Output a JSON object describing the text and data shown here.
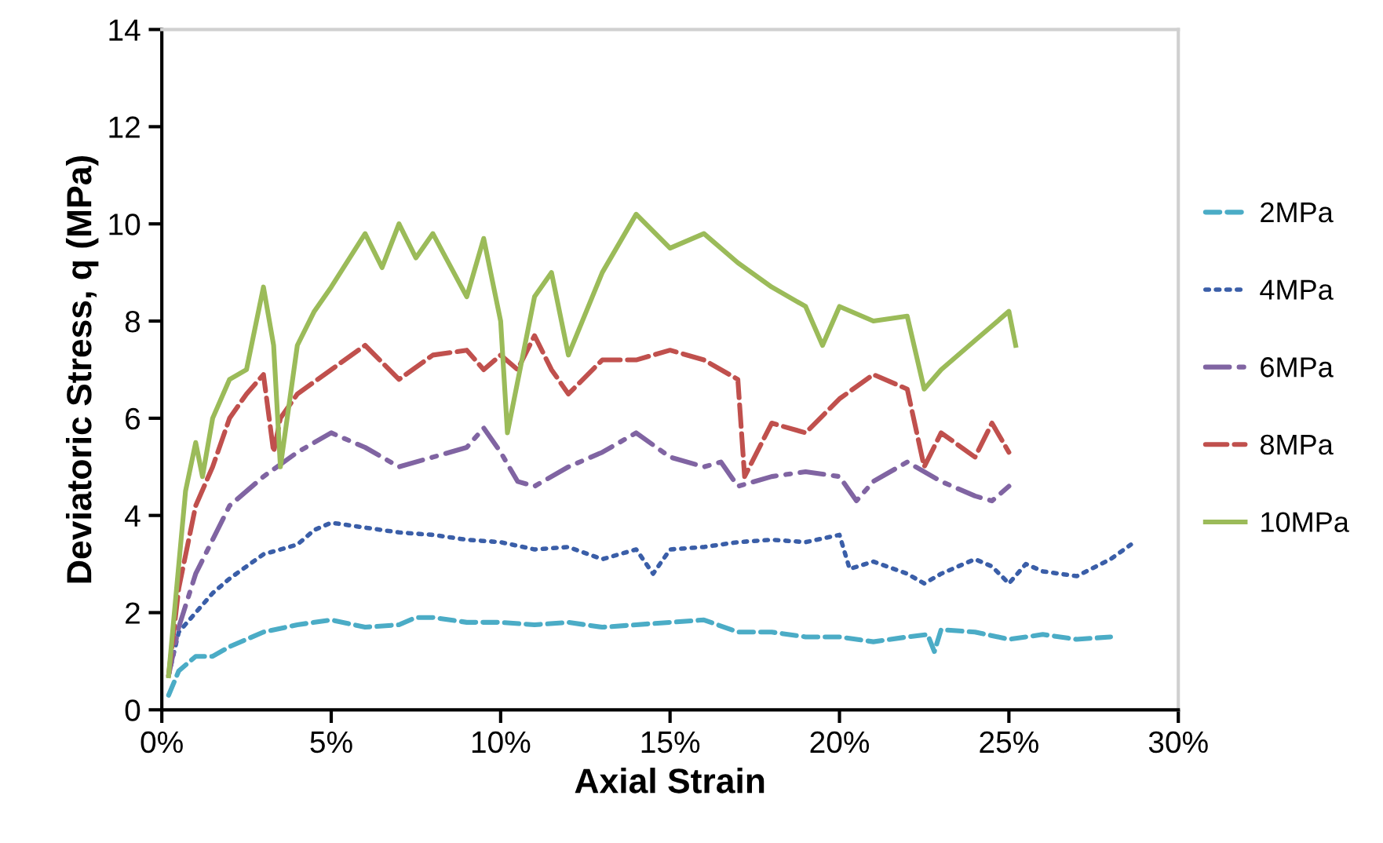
{
  "chart_data": {
    "type": "line",
    "xlabel": "Axial Strain",
    "ylabel": "Deviatoric Stress, q (MPa)",
    "xlim": [
      0,
      30
    ],
    "ylim": [
      0,
      14
    ],
    "xticks": [
      {
        "value": 0,
        "label": "0%"
      },
      {
        "value": 5,
        "label": "5%"
      },
      {
        "value": 10,
        "label": "10%"
      },
      {
        "value": 15,
        "label": "15%"
      },
      {
        "value": 20,
        "label": "20%"
      },
      {
        "value": 25,
        "label": "25%"
      },
      {
        "value": 30,
        "label": "30%"
      }
    ],
    "yticks": [
      0,
      2,
      4,
      6,
      8,
      10,
      12,
      14
    ],
    "grid": false,
    "legend": "right",
    "marker": "none",
    "series": [
      {
        "name": "2MPa",
        "color": "#4bacc6",
        "line_style": "dashed",
        "x": [
          0.2,
          0.5,
          1,
          1.5,
          2,
          3,
          4,
          5,
          6,
          7,
          7.5,
          8,
          9,
          10,
          11,
          12,
          13,
          14,
          15,
          16,
          17,
          18,
          19,
          20,
          21,
          22,
          22.6,
          22.8,
          23,
          24,
          25,
          26,
          27,
          28
        ],
        "values": [
          0.3,
          0.8,
          1.1,
          1.1,
          1.3,
          1.6,
          1.75,
          1.85,
          1.7,
          1.75,
          1.9,
          1.9,
          1.8,
          1.8,
          1.75,
          1.8,
          1.7,
          1.75,
          1.8,
          1.85,
          1.6,
          1.6,
          1.5,
          1.5,
          1.4,
          1.5,
          1.55,
          1.2,
          1.65,
          1.6,
          1.45,
          1.55,
          1.45,
          1.5
        ]
      },
      {
        "name": "4MPa",
        "color": "#3a5ea8",
        "line_style": "dotted",
        "x": [
          0.2,
          0.5,
          1,
          1.5,
          2,
          3,
          4,
          4.5,
          5,
          6,
          7,
          8,
          9,
          10,
          11,
          12,
          13,
          14,
          14.5,
          15,
          16,
          17,
          18,
          19,
          20,
          20.3,
          21,
          22,
          22.5,
          23,
          24,
          24.5,
          25,
          25.5,
          26,
          27,
          28,
          28.6
        ],
        "values": [
          0.7,
          1.6,
          2.0,
          2.4,
          2.7,
          3.2,
          3.4,
          3.7,
          3.85,
          3.75,
          3.65,
          3.6,
          3.5,
          3.45,
          3.3,
          3.35,
          3.1,
          3.3,
          2.8,
          3.3,
          3.35,
          3.45,
          3.5,
          3.45,
          3.6,
          2.9,
          3.05,
          2.8,
          2.6,
          2.8,
          3.1,
          2.95,
          2.6,
          3.0,
          2.85,
          2.75,
          3.1,
          3.4
        ]
      },
      {
        "name": "6MPa",
        "color": "#8064a2",
        "line_style": "dashdot",
        "x": [
          0.2,
          0.5,
          1,
          1.5,
          2,
          3,
          4,
          5,
          6,
          7,
          8,
          9,
          9.5,
          10,
          10.5,
          11,
          12,
          13,
          14,
          15,
          16,
          16.5,
          17,
          18,
          19,
          20,
          20.5,
          21,
          22,
          23,
          24,
          24.5,
          25
        ],
        "values": [
          0.7,
          1.7,
          2.8,
          3.5,
          4.2,
          4.8,
          5.3,
          5.7,
          5.4,
          5.0,
          5.2,
          5.4,
          5.8,
          5.3,
          4.7,
          4.6,
          5.0,
          5.3,
          5.7,
          5.2,
          5.0,
          5.1,
          4.6,
          4.8,
          4.9,
          4.8,
          4.3,
          4.7,
          5.1,
          4.7,
          4.4,
          4.3,
          4.6
        ]
      },
      {
        "name": "8MPa",
        "color": "#c0504d",
        "line_style": "longdash",
        "x": [
          0.2,
          0.5,
          1,
          1.5,
          2,
          2.5,
          3,
          3.3,
          3.5,
          4,
          5,
          6,
          7,
          8,
          9,
          9.5,
          10,
          10.5,
          11,
          11.5,
          12,
          13,
          14,
          15,
          16,
          17,
          17.2,
          18,
          19,
          20,
          21,
          22,
          22.5,
          23,
          24,
          24.5,
          25
        ],
        "values": [
          0.7,
          2.5,
          4.2,
          5.0,
          6.0,
          6.5,
          6.9,
          5.3,
          6.0,
          6.5,
          7.0,
          7.5,
          6.8,
          7.3,
          7.4,
          7.0,
          7.3,
          7.0,
          7.7,
          7.0,
          6.5,
          7.2,
          7.2,
          7.4,
          7.2,
          6.8,
          4.8,
          5.9,
          5.7,
          6.4,
          6.9,
          6.6,
          5.0,
          5.7,
          5.2,
          5.9,
          5.3
        ]
      },
      {
        "name": "10MPa",
        "color": "#9bbb59",
        "line_style": "solid",
        "x": [
          0.2,
          0.7,
          1,
          1.2,
          1.5,
          2,
          2.5,
          3,
          3.3,
          3.5,
          4,
          4.5,
          5,
          6,
          6.5,
          7,
          7.5,
          8,
          9,
          9.5,
          10,
          10.2,
          11,
          11.5,
          12,
          13,
          14,
          15,
          16,
          17,
          18,
          19,
          19.5,
          20,
          21,
          22,
          22.5,
          23,
          24,
          25,
          25.2
        ],
        "values": [
          0.7,
          4.5,
          5.5,
          4.8,
          6.0,
          6.8,
          7.0,
          8.7,
          7.5,
          5.0,
          7.5,
          8.2,
          8.7,
          9.8,
          9.1,
          10.0,
          9.3,
          9.8,
          8.5,
          9.7,
          8.0,
          5.7,
          8.5,
          9.0,
          7.3,
          9.0,
          10.2,
          9.5,
          9.8,
          9.2,
          8.7,
          8.3,
          7.5,
          8.3,
          8.0,
          8.1,
          6.6,
          7.0,
          7.6,
          8.2,
          7.5
        ]
      }
    ]
  }
}
